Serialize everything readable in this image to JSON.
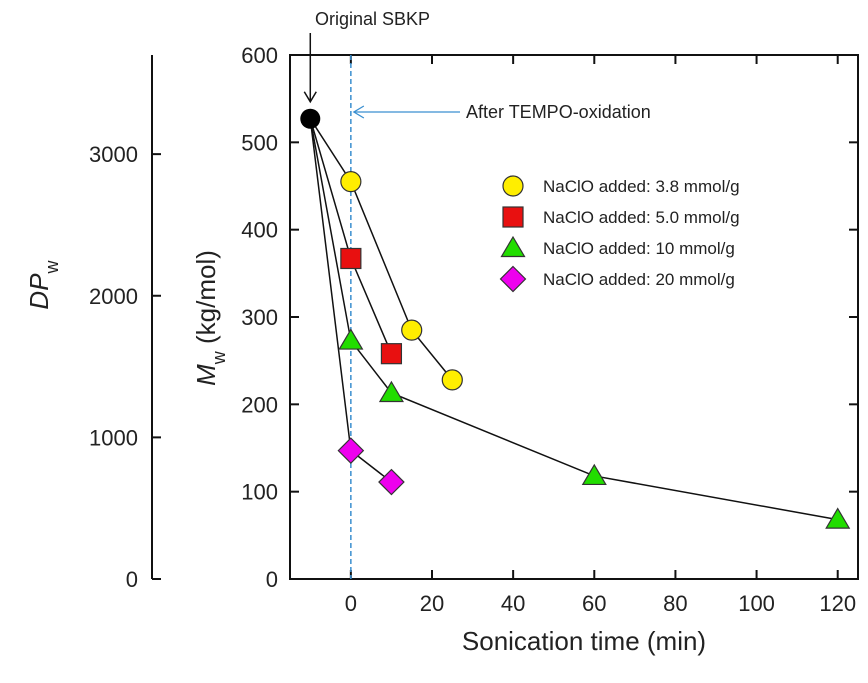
{
  "chart_data": {
    "type": "scatter",
    "xlabel": "Sonication time (min)",
    "ylabel_main": "M",
    "ylabel_sub": "w",
    "ylabel_rest": " (kg/mol)",
    "y2label_main": "DP",
    "y2label_sub": "w",
    "xlim": [
      -15,
      125
    ],
    "ylim": [
      0,
      600
    ],
    "y2lim": [
      0,
      3700
    ],
    "x_ticks": [
      0,
      20,
      40,
      60,
      80,
      100,
      120
    ],
    "x_tick_labels": [
      "0",
      "20",
      "40",
      "60",
      "80",
      "100",
      "120"
    ],
    "y_ticks": [
      0,
      100,
      200,
      300,
      400,
      500,
      600
    ],
    "y_tick_labels": [
      "0",
      "100",
      "200",
      "300",
      "400",
      "500",
      "600"
    ],
    "y2_ticks": [
      0,
      1000,
      2000,
      3000
    ],
    "y2_tick_labels": [
      "0",
      "1000",
      "2000",
      "3000"
    ],
    "grid": false,
    "legend_position": "upper-right",
    "reference_line": {
      "x": 0,
      "style": "dashed",
      "color": "#3a8fd0"
    },
    "origin_point": {
      "x": -10,
      "y": 527,
      "color": "#000000"
    },
    "annotations": [
      {
        "text": "Original SBKP",
        "points_to": "origin_point"
      },
      {
        "text": "After TEMPO-oxidation",
        "points_to": "reference_line"
      }
    ],
    "series": [
      {
        "name": "NaClO added: 3.8 mmol/g",
        "marker": "circle",
        "color": "#ffee00",
        "points": [
          [
            -10,
            527
          ],
          [
            0,
            455
          ],
          [
            15,
            285
          ],
          [
            25,
            228
          ]
        ]
      },
      {
        "name": "NaClO added: 5.0 mmol/g",
        "marker": "square",
        "color": "#e81010",
        "points": [
          [
            -10,
            527
          ],
          [
            0,
            367
          ],
          [
            10,
            258
          ]
        ]
      },
      {
        "name": "NaClO added: 10 mmol/g",
        "marker": "triangle",
        "color": "#22dd00",
        "points": [
          [
            -10,
            527
          ],
          [
            0,
            273
          ],
          [
            10,
            213
          ],
          [
            60,
            118
          ],
          [
            120,
            68
          ]
        ]
      },
      {
        "name": "NaClO added: 20 mmol/g",
        "marker": "diamond",
        "color": "#ee00ee",
        "points": [
          [
            -10,
            527
          ],
          [
            0,
            147
          ],
          [
            10,
            111
          ]
        ]
      }
    ]
  }
}
